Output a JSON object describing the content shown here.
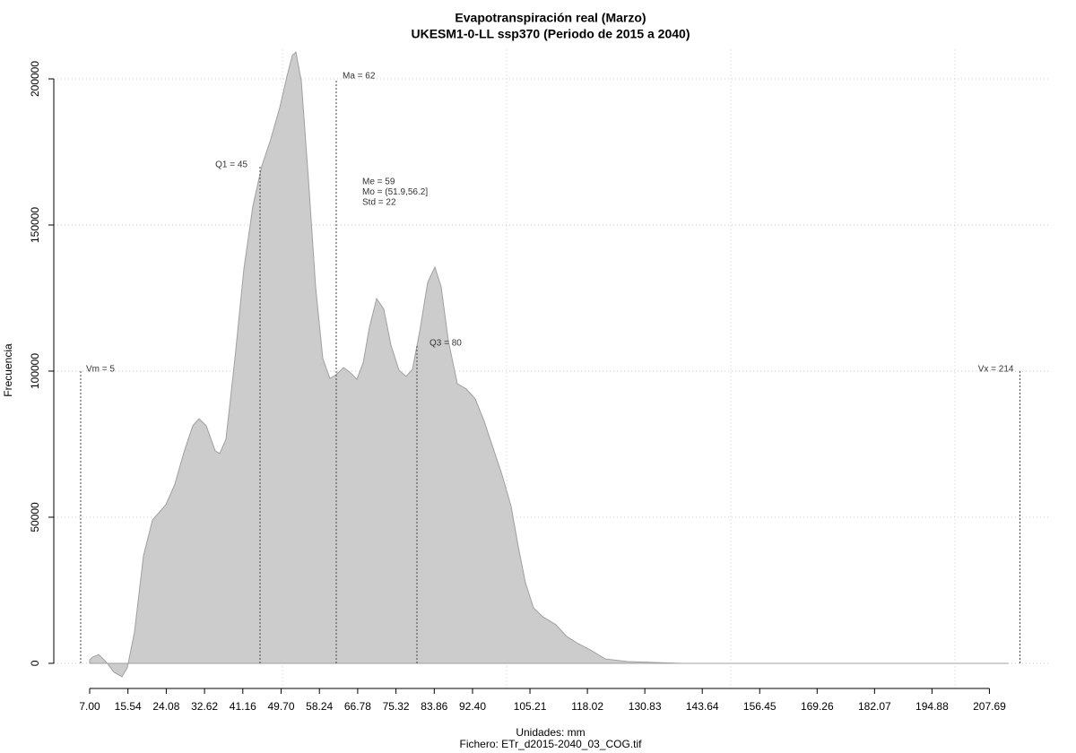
{
  "chart_data": {
    "type": "area",
    "title": "Evapotranspiración real (Marzo)",
    "subtitle": "UKESM1-0-LL ssp370 (Periodo de 2015 a 2040)",
    "x_label": "Unidades: mm",
    "caption": "Fichero: ETr_d2015-2040_03_COG.tif",
    "y_label": "Frecuencia",
    "x": [
      7,
      7.6,
      9,
      10.6,
      12.4,
      14.2,
      15.4,
      17,
      19,
      21,
      24,
      26,
      28,
      30,
      31.4,
      33,
      35,
      36,
      37.4,
      39.4,
      41.4,
      43.4,
      45.4,
      47.4,
      49.4,
      51,
      52.2,
      53,
      54.2,
      55.8,
      57.4,
      59,
      60.6,
      62,
      63.6,
      65,
      66.6,
      68,
      69.4,
      71,
      72.6,
      74.2,
      76,
      77.6,
      79,
      80.6,
      82.4,
      84,
      85.4,
      87,
      89,
      91,
      93,
      95,
      97,
      99,
      101,
      102.6,
      104.2,
      106,
      108,
      111,
      113.4,
      116,
      119,
      122,
      127,
      139,
      160,
      190,
      212
    ],
    "series": [
      {
        "name": "Frecuencia",
        "color": "#cccccc",
        "values": [
          1200,
          2100,
          3000,
          600,
          -3000,
          -4600,
          -1500,
          10700,
          36800,
          49000,
          54300,
          61300,
          72100,
          81300,
          83700,
          81300,
          72700,
          71800,
          76700,
          104300,
          135000,
          156400,
          170200,
          179400,
          190200,
          200900,
          208000,
          209200,
          199400,
          165600,
          128800,
          104300,
          97500,
          98800,
          101200,
          99700,
          97200,
          102800,
          115000,
          124800,
          121200,
          108900,
          100300,
          98200,
          100600,
          113500,
          130400,
          135600,
          128800,
          110400,
          95700,
          93900,
          90500,
          82800,
          73600,
          64400,
          53700,
          39900,
          27600,
          19000,
          16000,
          13200,
          9200,
          6700,
          4300,
          1500,
          600,
          0,
          0,
          0,
          0
        ]
      }
    ],
    "xlim": [
      -1,
      221
    ],
    "ylim": [
      -9000,
      210000
    ],
    "xticks": [
      {
        "value": 7,
        "label": "7.00"
      },
      {
        "value": 15.54,
        "label": "15.54"
      },
      {
        "value": 24.08,
        "label": "24.08"
      },
      {
        "value": 32.62,
        "label": "32.62"
      },
      {
        "value": 41.16,
        "label": "41.16"
      },
      {
        "value": 49.7,
        "label": "49.70"
      },
      {
        "value": 58.24,
        "label": "58.24"
      },
      {
        "value": 66.78,
        "label": "66.78"
      },
      {
        "value": 75.32,
        "label": "75.32"
      },
      {
        "value": 83.86,
        "label": "83.86"
      },
      {
        "value": 92.4,
        "label": "92.40"
      },
      {
        "value": 105.21,
        "label": "105.21"
      },
      {
        "value": 118.02,
        "label": "118.02"
      },
      {
        "value": 130.83,
        "label": "130.83"
      },
      {
        "value": 143.64,
        "label": "143.64"
      },
      {
        "value": 156.45,
        "label": "156.45"
      },
      {
        "value": 169.26,
        "label": "169.26"
      },
      {
        "value": 182.07,
        "label": "182.07"
      },
      {
        "value": 194.88,
        "label": "194.88"
      },
      {
        "value": 207.69,
        "label": "207.69"
      }
    ],
    "yticks": [
      0,
      50000,
      100000,
      150000,
      200000
    ],
    "xgrid": [
      50,
      100,
      150,
      200
    ],
    "grid": true,
    "annotations": [
      {
        "label": "Vm = 5",
        "x": 5,
        "y": 100000
      },
      {
        "label": "Q1 = 45",
        "x": 45,
        "y": 170000
      },
      {
        "label": "Ma = 62",
        "x": 62,
        "y": 200000
      },
      {
        "label": "Q3 = 80",
        "x": 80,
        "y": 109000
      },
      {
        "label": "Vx = 214",
        "x": 214.5,
        "y": 100000
      }
    ],
    "stats": [
      "Me = 59",
      "Mo = (51.9,56.2]",
      "Std = 22"
    ]
  }
}
